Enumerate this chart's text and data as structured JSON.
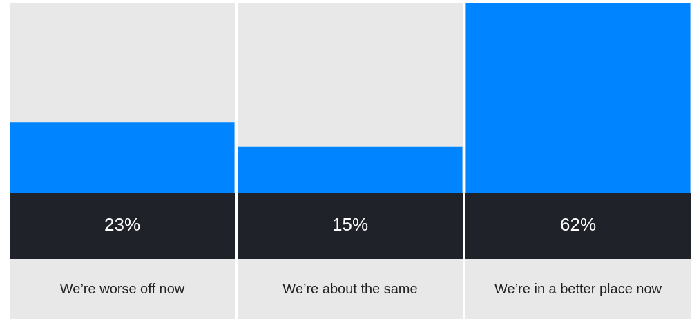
{
  "chart_data": {
    "type": "bar",
    "categories": [
      "We’re worse off now",
      "We’re about the same",
      "We’re in a better place now"
    ],
    "values": [
      23,
      15,
      62
    ],
    "color": "#0084ff",
    "value_labels": [
      "23%",
      "15%",
      "62%"
    ]
  }
}
